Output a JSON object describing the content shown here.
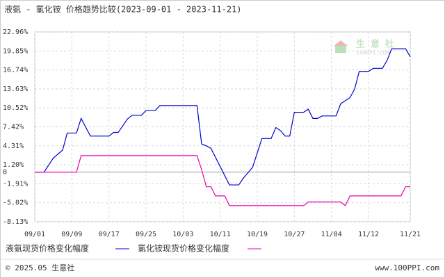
{
  "chart_data": {
    "type": "line",
    "title": "液氨 - 氯化铵 价格趋势比较(2023-09-01 - 2023-11-21)",
    "watermark": "生 意 社",
    "watermark_sub": "100PPI.COM",
    "footer_left": "© 2025.05 生意社",
    "footer_right": "www.100PPI.com",
    "xlim": [
      "09/01",
      "11/21"
    ],
    "xticks": [
      "09/01",
      "09/09",
      "09/17",
      "09/25",
      "10/03",
      "10/11",
      "10/19",
      "10/27",
      "11/04",
      "11/12",
      "11/21"
    ],
    "ylim": [
      -8.13,
      22.96
    ],
    "yticks": [
      {
        "value": 22.96,
        "label": "22.96%"
      },
      {
        "value": 19.85,
        "label": "19.85%"
      },
      {
        "value": 16.74,
        "label": "16.74%"
      },
      {
        "value": 13.63,
        "label": "13.63%"
      },
      {
        "value": 10.52,
        "label": "10.52%"
      },
      {
        "value": 7.42,
        "label": "7.42%"
      },
      {
        "value": 4.31,
        "label": "4.31%"
      },
      {
        "value": 1.2,
        "label": "1.20%"
      },
      0,
      {
        "value": -1.91,
        "label": "-1.91%"
      },
      {
        "value": -5.02,
        "label": "-5.02%"
      },
      {
        "value": -8.13,
        "label": "-8.13%"
      }
    ],
    "grid": true,
    "series": [
      {
        "name": "液氨现货价格变化幅度",
        "color": "#0000cc",
        "x": [
          "09/01",
          "09/03",
          "09/05",
          "09/07",
          "09/08",
          "09/10",
          "09/11",
          "09/13",
          "09/17",
          "09/18",
          "09/19",
          "09/21",
          "09/22",
          "09/24",
          "09/25",
          "09/27",
          "09/28",
          "10/06",
          "10/07",
          "10/08",
          "10/09",
          "10/13",
          "10/15",
          "10/16",
          "10/18",
          "10/20",
          "10/22",
          "10/23",
          "10/24",
          "10/25",
          "10/26",
          "10/27",
          "10/29",
          "10/30",
          "10/31",
          "11/01",
          "11/02",
          "11/05",
          "11/06",
          "11/08",
          "11/09",
          "11/10",
          "11/12",
          "11/13",
          "11/15",
          "11/16",
          "11/17",
          "11/20",
          "11/21"
        ],
        "values": [
          0,
          0,
          2.3,
          3.6,
          6.4,
          6.4,
          8.8,
          5.9,
          5.9,
          6.5,
          6.5,
          8.7,
          9.3,
          9.3,
          10.1,
          10.1,
          10.9,
          10.9,
          4.6,
          4.3,
          3.9,
          -2.1,
          -2.1,
          -1.0,
          0.8,
          5.5,
          5.5,
          7.3,
          6.8,
          5.9,
          5.9,
          9.8,
          9.8,
          10.3,
          8.8,
          8.8,
          9.2,
          9.2,
          11.2,
          12.2,
          13.6,
          16.5,
          16.5,
          17.0,
          17.0,
          18.3,
          20.2,
          20.2,
          18.9
        ]
      },
      {
        "name": "氯化铵现货价格变化幅度",
        "color": "#ee00aa",
        "x": [
          "09/01",
          "09/10",
          "09/11",
          "10/06",
          "10/07",
          "10/08",
          "10/09",
          "10/10",
          "10/12",
          "10/13",
          "10/29",
          "10/30",
          "11/06",
          "11/07",
          "11/08",
          "11/19",
          "11/20",
          "11/21"
        ],
        "values": [
          0,
          0,
          2.7,
          2.7,
          0.4,
          -2.4,
          -2.4,
          -3.9,
          -3.9,
          -5.5,
          -5.5,
          -4.9,
          -4.9,
          -5.5,
          -3.9,
          -3.9,
          -2.4,
          -2.4
        ]
      }
    ]
  }
}
